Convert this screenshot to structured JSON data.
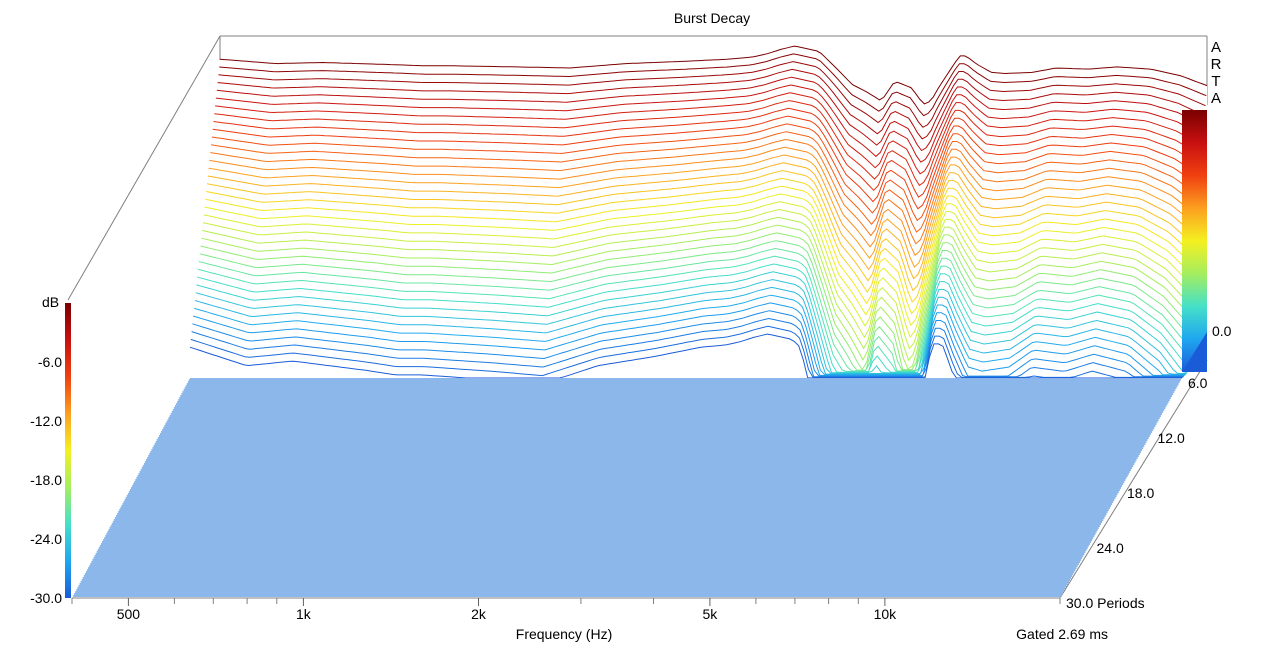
{
  "chart_data": {
    "type": "waterfall",
    "title": "Burst Decay",
    "brand": [
      "A",
      "R",
      "T",
      "A"
    ],
    "xlabel": "Frequency (Hz)",
    "footer_note": "Gated 2.69 ms",
    "x_scale": "log",
    "xlim": [
      400,
      20000
    ],
    "x_tick_labels": [
      {
        "value": 500,
        "label": "500"
      },
      {
        "value": 1000,
        "label": "1k"
      },
      {
        "value": 2000,
        "label": "2k"
      },
      {
        "value": 5000,
        "label": "5k"
      },
      {
        "value": 10000,
        "label": "10k"
      }
    ],
    "x_minor_ticks": [
      400,
      600,
      700,
      800,
      900,
      3000,
      4000,
      6000,
      7000,
      8000,
      9000,
      20000
    ],
    "ylabel": "dB",
    "ylim": [
      -30,
      0
    ],
    "y_tick_labels": [
      {
        "value": -6,
        "label": "-6.0"
      },
      {
        "value": -12,
        "label": "-12.0"
      },
      {
        "value": -18,
        "label": "-18.0"
      },
      {
        "value": -24,
        "label": "-24.0"
      },
      {
        "value": -30,
        "label": "-30.0"
      }
    ],
    "right_db_label": {
      "value": 0,
      "label": "0.0"
    },
    "z_axis": {
      "unit": "Periods",
      "zlim": [
        0,
        30
      ],
      "tick_labels": [
        {
          "value": 6,
          "label": "6.0"
        },
        {
          "value": 12,
          "label": "12.0"
        },
        {
          "value": 18,
          "label": "18.0"
        },
        {
          "value": 24,
          "label": "24.0"
        },
        {
          "value": 30,
          "label": "30.0 Periods"
        }
      ]
    },
    "num_slices": 38,
    "front_floor_lines": 110,
    "front_profile": {
      "freq": [
        400,
        500,
        600,
        800,
        900,
        1000,
        1300,
        1600,
        2000,
        2500,
        3000,
        3300,
        3500,
        3700,
        3900,
        4300,
        4600,
        4900,
        5200,
        5500,
        5800,
        6200,
        6500,
        6700,
        6900,
        7200,
        7500,
        7700,
        8000,
        8500,
        9000,
        10000,
        11000,
        12500,
        14000,
        16000,
        18000,
        20000
      ],
      "db": [
        -1.2,
        -1.6,
        -1.5,
        -1.7,
        -1.8,
        -1.8,
        -1.9,
        -2.0,
        -1.6,
        -1.4,
        -1.2,
        -1.0,
        -0.7,
        -0.3,
        0.0,
        -0.5,
        -2.0,
        -3.5,
        -4.2,
        -5.0,
        -3.2,
        -3.8,
        -5.3,
        -5.0,
        -3.8,
        -2.3,
        -0.9,
        -0.9,
        -1.6,
        -2.4,
        -2.5,
        -2.4,
        -2.0,
        -2.1,
        -1.9,
        -2.1,
        -2.7,
        -3.6
      ]
    },
    "colorbar": {
      "colors": [
        "#1a5cd8",
        "#1fa6f0",
        "#45e0c8",
        "#a4ee60",
        "#f4f020",
        "#fca020",
        "#f04010",
        "#c81010",
        "#7a0000"
      ]
    }
  }
}
